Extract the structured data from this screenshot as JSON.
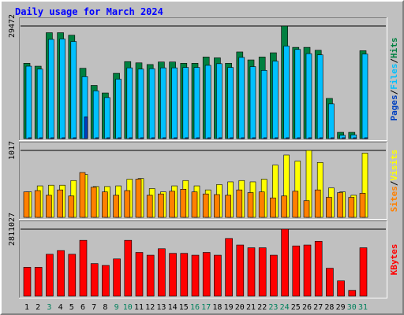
{
  "chart_data": [
    {
      "type": "bar",
      "title": "Daily usage for March 2024",
      "categories": [
        "1",
        "2",
        "3",
        "4",
        "5",
        "6",
        "7",
        "8",
        "9",
        "10",
        "11",
        "12",
        "13",
        "14",
        "15",
        "16",
        "17",
        "18",
        "19",
        "20",
        "21",
        "22",
        "23",
        "24",
        "25",
        "26",
        "27",
        "28",
        "29",
        "30",
        "31"
      ],
      "weekend_days": [
        "3",
        "9",
        "10",
        "16",
        "17",
        "23",
        "24",
        "30",
        "31"
      ],
      "series": [
        {
          "name": "Hits",
          "color": "#008040",
          "values": [
            18000,
            17300,
            25300,
            25300,
            24700,
            16800,
            12700,
            10900,
            15600,
            18400,
            18100,
            17700,
            18300,
            18300,
            18000,
            18000,
            19500,
            19300,
            18000,
            20700,
            18800,
            19500,
            20500,
            26900,
            21800,
            21800,
            21100,
            9600,
            1500,
            1500,
            21000
          ]
        },
        {
          "name": "Files",
          "color": "#00c0ff",
          "values": [
            17300,
            16600,
            23700,
            23800,
            23200,
            14800,
            11400,
            9800,
            14200,
            16900,
            16600,
            16700,
            16900,
            16900,
            17000,
            17000,
            17500,
            17900,
            17000,
            19400,
            17200,
            16300,
            18500,
            22100,
            21300,
            20300,
            20000,
            8300,
            800,
            900,
            20200
          ]
        },
        {
          "name": "Pages",
          "color": "#0040c0",
          "values": [
            200,
            200,
            200,
            200,
            200,
            5200,
            200,
            200,
            200,
            200,
            200,
            200,
            200,
            200,
            200,
            200,
            200,
            200,
            200,
            200,
            200,
            200,
            200,
            200,
            200,
            200,
            200,
            200,
            200,
            200,
            200
          ]
        }
      ],
      "ytick": "29472",
      "ylabel": [
        "Pages",
        "Files",
        "Hits"
      ]
    },
    {
      "type": "bar",
      "categories": [
        "1",
        "2",
        "3",
        "4",
        "5",
        "6",
        "7",
        "8",
        "9",
        "10",
        "11",
        "12",
        "13",
        "14",
        "15",
        "16",
        "17",
        "18",
        "19",
        "20",
        "21",
        "22",
        "23",
        "24",
        "25",
        "26",
        "27",
        "28",
        "29",
        "30",
        "31"
      ],
      "series": [
        {
          "name": "Visits",
          "color": "#ffff00",
          "values": [
            380,
            470,
            480,
            480,
            550,
            640,
            460,
            460,
            470,
            570,
            580,
            430,
            380,
            470,
            550,
            470,
            410,
            490,
            530,
            550,
            530,
            570,
            780,
            930,
            840,
            1000,
            820,
            440,
            380,
            330,
            960
          ]
        },
        {
          "name": "Sites",
          "color": "#ff8000",
          "values": [
            380,
            400,
            330,
            410,
            320,
            670,
            450,
            380,
            330,
            400,
            570,
            330,
            350,
            390,
            420,
            380,
            350,
            340,
            330,
            410,
            370,
            380,
            290,
            320,
            390,
            250,
            410,
            300,
            370,
            300,
            360
          ]
        }
      ],
      "ytick": "1017",
      "ylabel": [
        "Sites",
        "Visits"
      ]
    },
    {
      "type": "bar",
      "categories": [
        "1",
        "2",
        "3",
        "4",
        "5",
        "6",
        "7",
        "8",
        "9",
        "10",
        "11",
        "12",
        "13",
        "14",
        "15",
        "16",
        "17",
        "18",
        "19",
        "20",
        "21",
        "22",
        "23",
        "24",
        "25",
        "26",
        "27",
        "28",
        "29",
        "30",
        "31"
      ],
      "series": [
        {
          "name": "KBytes",
          "color": "#ff0000",
          "values": [
            1550000,
            1550000,
            2250000,
            2450000,
            2250000,
            3000000,
            1750000,
            1650000,
            2000000,
            3000000,
            2350000,
            2200000,
            2550000,
            2300000,
            2300000,
            2200000,
            2350000,
            2200000,
            3100000,
            2750000,
            2600000,
            2600000,
            2200000,
            3600000,
            2700000,
            2750000,
            2950000,
            1500000,
            820000,
            310000,
            2600000
          ]
        }
      ],
      "ytick": "2811027",
      "ylabel": [
        "KBytes"
      ]
    }
  ],
  "colors": {
    "title": "#0000ff",
    "weekday_label": "#000000",
    "weekend_label": "#00805c",
    "separator": "#000000"
  }
}
